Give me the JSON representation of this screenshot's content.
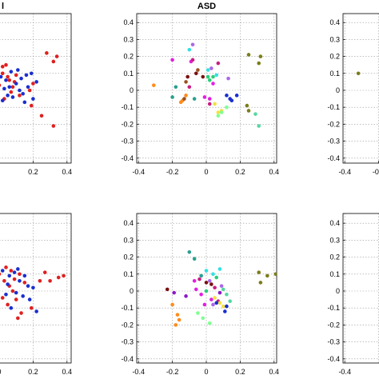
{
  "chart_data": [
    {
      "type": "scatter",
      "title": "",
      "title_partial": "l",
      "xlim": [
        -0.45,
        0.45
      ],
      "ylim": [
        -0.45,
        0.45
      ],
      "x_ticks": [
        "0.2",
        "0.4"
      ],
      "y_ticks": [],
      "grid": true,
      "series": [
        {
          "color": "#e02020",
          "points": [
            [
              -0.02,
              0.12
            ],
            [
              0.02,
              0.1
            ],
            [
              0.05,
              0.08
            ],
            [
              -0.03,
              0.05
            ],
            [
              0.0,
              0.03
            ],
            [
              0.06,
              0.06
            ],
            [
              0.08,
              0.02
            ],
            [
              -0.01,
              -0.02
            ],
            [
              0.03,
              -0.05
            ],
            [
              0.1,
              0.09
            ],
            [
              0.12,
              -0.03
            ],
            [
              0.04,
              0.15
            ],
            [
              -0.03,
              -0.1
            ],
            [
              0.18,
              0.0
            ],
            [
              0.2,
              0.04
            ],
            [
              0.19,
              -0.09
            ],
            [
              0.25,
              -0.15
            ],
            [
              0.32,
              -0.21
            ],
            [
              0.34,
              0.2
            ],
            [
              0.28,
              0.22
            ],
            [
              0.32,
              0.17
            ],
            [
              0.07,
              -0.01
            ],
            [
              0.09,
              0.05
            ],
            [
              0.02,
              0.14
            ]
          ]
        },
        {
          "color": "#1a2fcf",
          "points": [
            [
              0.01,
              0.08
            ],
            [
              0.04,
              0.06
            ],
            [
              0.07,
              0.11
            ],
            [
              0.1,
              0.04
            ],
            [
              0.13,
              0.07
            ],
            [
              0.16,
              0.09
            ],
            [
              0.19,
              0.1
            ],
            [
              0.22,
              0.05
            ],
            [
              0.12,
              0.0
            ],
            [
              0.08,
              -0.04
            ],
            [
              0.05,
              -0.03
            ],
            [
              0.02,
              -0.06
            ],
            [
              -0.02,
              -0.04
            ],
            [
              0.15,
              -0.07
            ],
            [
              0.2,
              -0.05
            ],
            [
              0.17,
              0.02
            ],
            [
              0.11,
              0.12
            ],
            [
              0.06,
              0.02
            ],
            [
              0.14,
              -0.02
            ],
            [
              0.03,
              0.01
            ]
          ]
        }
      ]
    },
    {
      "type": "scatter",
      "title": "ASD",
      "xlim": [
        -0.45,
        0.45
      ],
      "ylim": [
        -0.45,
        0.45
      ],
      "x_ticks": [
        "-0.4",
        "-0.2",
        "0",
        "0.2",
        "0.4"
      ],
      "y_ticks": [
        "-0.4",
        "-0.3",
        "-0.2",
        "-0.1",
        "0",
        "0.1",
        "0.2",
        "0.3",
        "0.4"
      ],
      "grid": true,
      "series": [
        {
          "color": "#ff8c1a",
          "points": [
            [
              -0.31,
              0.03
            ],
            [
              -0.15,
              -0.07
            ],
            [
              -0.12,
              -0.03
            ],
            [
              -0.14,
              -0.06
            ]
          ]
        },
        {
          "color": "#2a9f8f",
          "points": [
            [
              -0.2,
              -0.04
            ],
            [
              -0.18,
              0.02
            ],
            [
              -0.07,
              -0.05
            ]
          ]
        },
        {
          "color": "#9a5020",
          "points": [
            [
              -0.05,
              0.12
            ],
            [
              -0.12,
              0.05
            ],
            [
              -0.13,
              -0.05
            ]
          ]
        },
        {
          "color": "#e020e0",
          "points": [
            [
              -0.2,
              0.18
            ],
            [
              -0.09,
              0.17
            ],
            [
              -0.01,
              -0.04
            ],
            [
              0.02,
              -0.05
            ],
            [
              0.04,
              0.04
            ]
          ]
        },
        {
          "color": "#c81e82",
          "points": [
            [
              -0.08,
              0.18
            ],
            [
              -0.1,
              0.02
            ],
            [
              0.07,
              0.16
            ],
            [
              0.02,
              -0.08
            ]
          ]
        },
        {
          "color": "#7a1010",
          "points": [
            [
              -0.11,
              0.08
            ],
            [
              -0.06,
              0.1
            ],
            [
              -0.02,
              0.08
            ]
          ]
        },
        {
          "color": "#a868e8",
          "points": [
            [
              -0.08,
              0.27
            ],
            [
              0.03,
              0.13
            ],
            [
              0.13,
              0.07
            ]
          ]
        },
        {
          "color": "#28d07a",
          "points": [
            [
              0.01,
              0.08
            ],
            [
              0.02,
              0.06
            ],
            [
              0.04,
              0.08
            ]
          ]
        },
        {
          "color": "#33e0e0",
          "points": [
            [
              -0.1,
              0.24
            ],
            [
              0.01,
              0.12
            ],
            [
              0.06,
              0.09
            ]
          ]
        },
        {
          "color": "#f5e040",
          "points": [
            [
              0.05,
              -0.08
            ],
            [
              0.07,
              -0.13
            ],
            [
              0.09,
              -0.12
            ]
          ]
        },
        {
          "color": "#80ff90",
          "points": [
            [
              0.09,
              -0.13
            ],
            [
              0.12,
              -0.1
            ],
            [
              0.07,
              -0.15
            ]
          ]
        },
        {
          "color": "#1a2fcf",
          "points": [
            [
              0.12,
              -0.03
            ],
            [
              0.14,
              -0.05
            ],
            [
              0.18,
              -0.03
            ],
            [
              0.15,
              -0.06
            ]
          ]
        },
        {
          "color": "#7c7c1a",
          "points": [
            [
              0.25,
              0.21
            ],
            [
              0.32,
              0.2
            ],
            [
              0.31,
              0.16
            ],
            [
              0.24,
              -0.09
            ],
            [
              0.25,
              -0.12
            ]
          ]
        },
        {
          "color": "#55d8a0",
          "points": [
            [
              0.29,
              -0.14
            ],
            [
              0.31,
              -0.21
            ]
          ]
        }
      ]
    },
    {
      "type": "scatter",
      "title": "",
      "xlim": [
        -0.45,
        0.45
      ],
      "ylim": [
        -0.45,
        0.45
      ],
      "x_ticks": [
        "-0.4",
        "-0.2"
      ],
      "x_tick_partial": "-(",
      "y_ticks": [
        "-0.4",
        "-0.3",
        "-0.2",
        "-0.1",
        "0",
        "0.1",
        "0.2",
        "0.3",
        "0.4"
      ],
      "grid": true,
      "series": [
        {
          "color": "#7c7c1a",
          "points": [
            [
              -0.32,
              0.1
            ]
          ]
        }
      ]
    },
    {
      "type": "scatter",
      "title": "",
      "xlim": [
        -0.45,
        0.45
      ],
      "ylim": [
        -0.45,
        0.45
      ],
      "x_ticks": [
        "0",
        "0.2",
        "0.4"
      ],
      "y_ticks": [],
      "grid": true,
      "series": [
        {
          "color": "#e02020",
          "points": [
            [
              0.0,
              0.1
            ],
            [
              0.04,
              0.14
            ],
            [
              0.07,
              0.12
            ],
            [
              0.03,
              0.06
            ],
            [
              0.06,
              0.03
            ],
            [
              0.09,
              0.07
            ],
            [
              0.12,
              0.1
            ],
            [
              0.02,
              -0.04
            ],
            [
              0.05,
              -0.08
            ],
            [
              0.1,
              -0.05
            ],
            [
              0.13,
              -0.13
            ],
            [
              0.19,
              -0.1
            ],
            [
              0.24,
              0.06
            ],
            [
              0.27,
              0.11
            ],
            [
              0.3,
              0.06
            ],
            [
              0.35,
              0.08
            ],
            [
              0.38,
              0.09
            ],
            [
              0.08,
              0.0
            ],
            [
              -0.01,
              0.02
            ],
            [
              0.15,
              0.05
            ],
            [
              0.11,
              -0.16
            ]
          ]
        },
        {
          "color": "#1a2fcf",
          "points": [
            [
              0.02,
              0.12
            ],
            [
              0.06,
              0.09
            ],
            [
              0.09,
              0.11
            ],
            [
              0.12,
              0.06
            ],
            [
              0.15,
              0.09
            ],
            [
              0.17,
              0.03
            ],
            [
              0.2,
              0.02
            ],
            [
              0.1,
              -0.01
            ],
            [
              0.04,
              -0.02
            ],
            [
              0.07,
              -0.1
            ],
            [
              0.14,
              -0.03
            ],
            [
              0.18,
              -0.05
            ],
            [
              0.22,
              -0.12
            ],
            [
              0.05,
              0.04
            ],
            [
              0.11,
              0.13
            ]
          ]
        }
      ]
    },
    {
      "type": "scatter",
      "title": "",
      "xlim": [
        -0.45,
        0.45
      ],
      "ylim": [
        -0.45,
        0.45
      ],
      "x_ticks": [
        "-0.4",
        "-0.2",
        "0",
        "0.2",
        "0.4"
      ],
      "y_ticks": [
        "-0.4",
        "-0.3",
        "-0.2",
        "-0.1",
        "0",
        "0.1",
        "0.2",
        "0.3",
        "0.4"
      ],
      "grid": true,
      "series": [
        {
          "color": "#7a1010",
          "points": [
            [
              -0.23,
              0.01
            ],
            [
              0.0,
              0.05
            ],
            [
              0.03,
              0.04
            ]
          ]
        },
        {
          "color": "#8c1ac8",
          "points": [
            [
              -0.19,
              -0.01
            ],
            [
              -0.12,
              -0.03
            ],
            [
              0.08,
              -0.01
            ]
          ]
        },
        {
          "color": "#ff8c1a",
          "points": [
            [
              -0.2,
              -0.08
            ],
            [
              -0.17,
              -0.14
            ],
            [
              -0.16,
              -0.17
            ],
            [
              -0.18,
              -0.2
            ]
          ]
        },
        {
          "color": "#e020e0",
          "points": [
            [
              -0.07,
              0.06
            ],
            [
              -0.03,
              -0.02
            ],
            [
              -0.06,
              0.01
            ],
            [
              0.03,
              -0.05
            ],
            [
              -0.01,
              -0.08
            ]
          ]
        },
        {
          "color": "#2a9f8f",
          "points": [
            [
              -0.1,
              0.23
            ],
            [
              -0.07,
              0.19
            ],
            [
              -0.03,
              0.09
            ]
          ]
        },
        {
          "color": "#c81e82",
          "points": [
            [
              -0.04,
              0.07
            ],
            [
              0.05,
              0.02
            ],
            [
              0.07,
              -0.06
            ]
          ]
        },
        {
          "color": "#a868e8",
          "points": [
            [
              0.02,
              0.06
            ],
            [
              0.09,
              0.03
            ],
            [
              0.04,
              -0.08
            ]
          ]
        },
        {
          "color": "#33e0e0",
          "points": [
            [
              0.0,
              0.12
            ],
            [
              0.04,
              0.1
            ],
            [
              0.08,
              0.13
            ]
          ]
        },
        {
          "color": "#f5e040",
          "points": [
            [
              0.05,
              -0.04
            ],
            [
              0.08,
              -0.07
            ],
            [
              0.1,
              -0.09
            ]
          ]
        },
        {
          "color": "#80ff90",
          "points": [
            [
              -0.05,
              -0.13
            ],
            [
              -0.02,
              -0.16
            ],
            [
              0.02,
              -0.19
            ]
          ]
        },
        {
          "color": "#1a2fcf",
          "points": [
            [
              0.06,
              -0.07
            ],
            [
              0.11,
              -0.12
            ],
            [
              0.12,
              -0.09
            ]
          ]
        },
        {
          "color": "#55d8a0",
          "points": [
            [
              0.1,
              0.01
            ],
            [
              0.12,
              -0.02
            ],
            [
              0.14,
              -0.06
            ]
          ]
        },
        {
          "color": "#7c7c1a",
          "points": [
            [
              0.31,
              0.11
            ],
            [
              0.32,
              0.05
            ],
            [
              0.36,
              0.09
            ],
            [
              0.41,
              0.1
            ]
          ]
        },
        {
          "color": "#28d07a",
          "points": [
            [
              0.0,
              0.0
            ],
            [
              0.06,
              0.08
            ]
          ]
        }
      ]
    },
    {
      "type": "scatter",
      "title": "",
      "xlim": [
        -0.45,
        0.45
      ],
      "ylim": [
        -0.45,
        0.45
      ],
      "x_ticks": [
        "-0.4"
      ],
      "x_tick_partial": "-(",
      "y_ticks": [
        "-0.4",
        "-0.3",
        "-0.2",
        "-0.1",
        "0",
        "0.1",
        "0.2",
        "0.3",
        "0.4"
      ],
      "grid": true,
      "series": []
    }
  ]
}
